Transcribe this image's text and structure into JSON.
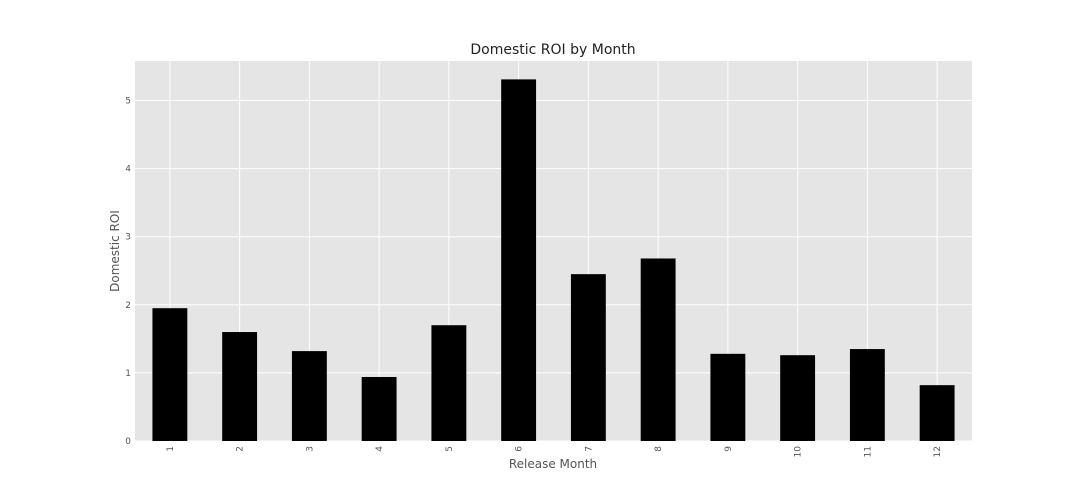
{
  "chart_data": {
    "type": "bar",
    "title": "Domestic ROI by Month",
    "xlabel": "Release Month",
    "ylabel": "Domestic ROI",
    "categories": [
      "1",
      "2",
      "3",
      "4",
      "5",
      "6",
      "7",
      "8",
      "9",
      "10",
      "11",
      "12"
    ],
    "values": [
      1.95,
      1.6,
      1.32,
      0.94,
      1.7,
      5.31,
      2.45,
      2.68,
      1.28,
      1.26,
      1.35,
      0.82
    ],
    "yticks": [
      "0",
      "1",
      "2",
      "3",
      "4",
      "5"
    ],
    "ylim": [
      0,
      5.58
    ],
    "grid": true,
    "bar_color": "#000000",
    "plot_background": "#e5e5e5",
    "grid_color": "#ffffff"
  }
}
